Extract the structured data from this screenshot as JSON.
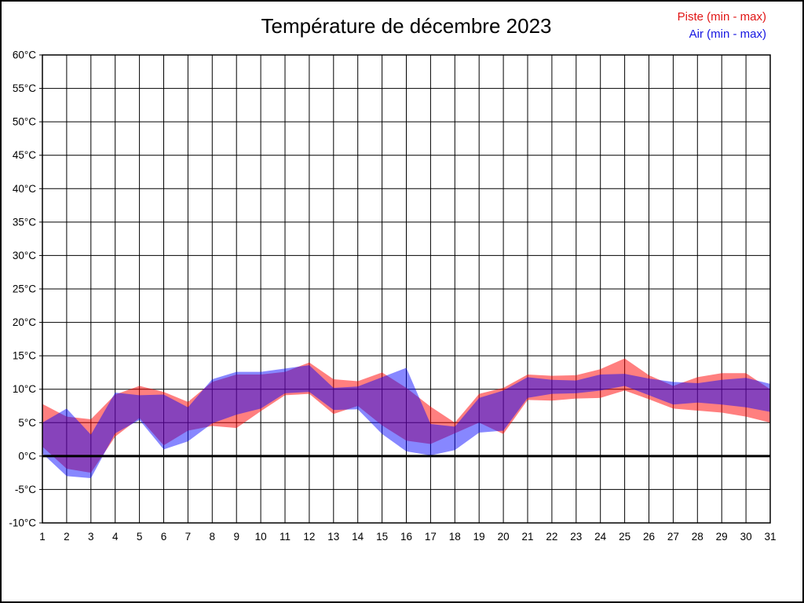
{
  "title": "Température de décembre 2023",
  "legend": {
    "items": [
      {
        "label": "Piste (min - max)",
        "color": "#e11414"
      },
      {
        "label": "Air (min - max)",
        "color": "#1414e1"
      }
    ]
  },
  "colors": {
    "piste_fill": "rgba(255,0,0,0.5)",
    "air_fill": "rgba(0,0,255,0.47)",
    "grid": "#000000",
    "zero_line": "#000000",
    "border": "#000000",
    "tick_text": "#000000",
    "background": "#ffffff"
  },
  "chart_data": {
    "type": "area",
    "title": "Température de décembre 2023",
    "xlabel": "",
    "ylabel": "",
    "xlim": [
      1,
      31
    ],
    "ylim": [
      -10,
      60
    ],
    "grid": true,
    "zero_line_thick": true,
    "legend_position": "top-right",
    "x": [
      1,
      2,
      3,
      4,
      5,
      6,
      7,
      8,
      9,
      10,
      11,
      12,
      13,
      14,
      15,
      16,
      17,
      18,
      19,
      20,
      21,
      22,
      23,
      24,
      25,
      26,
      27,
      28,
      29,
      30,
      31
    ],
    "x_tick_labels": [
      "1",
      "2",
      "3",
      "4",
      "5",
      "6",
      "7",
      "8",
      "9",
      "10",
      "11",
      "12",
      "13",
      "14",
      "15",
      "16",
      "17",
      "18",
      "19",
      "20",
      "21",
      "22",
      "23",
      "24",
      "25",
      "26",
      "27",
      "28",
      "29",
      "30",
      "31"
    ],
    "y_ticks": [
      60,
      55,
      50,
      45,
      40,
      35,
      30,
      25,
      20,
      15,
      10,
      5,
      0,
      -5,
      -10
    ],
    "y_tick_labels": [
      "60°C",
      "55°C",
      "50°C",
      "45°C",
      "40°C",
      "35°C",
      "30°C",
      "25°C",
      "20°C",
      "15°C",
      "10°C",
      "5°C",
      "0°C",
      "-5°C",
      "-10°C"
    ],
    "series": [
      {
        "name": "Piste (min - max)",
        "kind": "band",
        "min": [
          1.4,
          -1.9,
          -2.5,
          2.9,
          5.7,
          1.6,
          3.8,
          4.5,
          4.2,
          6.7,
          9.1,
          9.3,
          6.3,
          7.5,
          4.6,
          2.3,
          1.8,
          3.4,
          5.0,
          3.3,
          8.4,
          8.3,
          8.6,
          8.7,
          9.8,
          8.5,
          7.1,
          6.8,
          6.5,
          5.9,
          5.0
        ],
        "max": [
          7.8,
          5.9,
          5.5,
          9.2,
          10.5,
          9.6,
          8.1,
          11.1,
          12.2,
          12.2,
          12.6,
          14.0,
          11.5,
          11.2,
          12.5,
          10.2,
          7.4,
          5.0,
          9.3,
          10.2,
          12.2,
          12.0,
          12.1,
          13.0,
          14.6,
          12.1,
          10.5,
          11.8,
          12.4,
          12.4,
          10.0
        ]
      },
      {
        "name": "Air (min - max)",
        "kind": "band",
        "min": [
          0.4,
          -3.0,
          -3.3,
          3.4,
          5.4,
          1.0,
          2.2,
          4.9,
          6.2,
          7.1,
          9.4,
          9.6,
          6.9,
          7.0,
          3.3,
          0.7,
          0.1,
          0.9,
          3.5,
          3.8,
          8.7,
          9.3,
          9.4,
          9.8,
          10.5,
          9.1,
          7.7,
          8.0,
          7.7,
          7.3,
          6.6
        ],
        "max": [
          5.0,
          7.1,
          3.2,
          9.5,
          9.1,
          9.2,
          7.3,
          11.5,
          12.6,
          12.6,
          13.1,
          13.6,
          10.2,
          10.4,
          11.8,
          13.2,
          4.8,
          4.4,
          8.7,
          9.8,
          11.8,
          11.4,
          11.3,
          12.2,
          12.3,
          11.6,
          11.1,
          10.9,
          11.4,
          11.7,
          10.8
        ]
      }
    ]
  }
}
